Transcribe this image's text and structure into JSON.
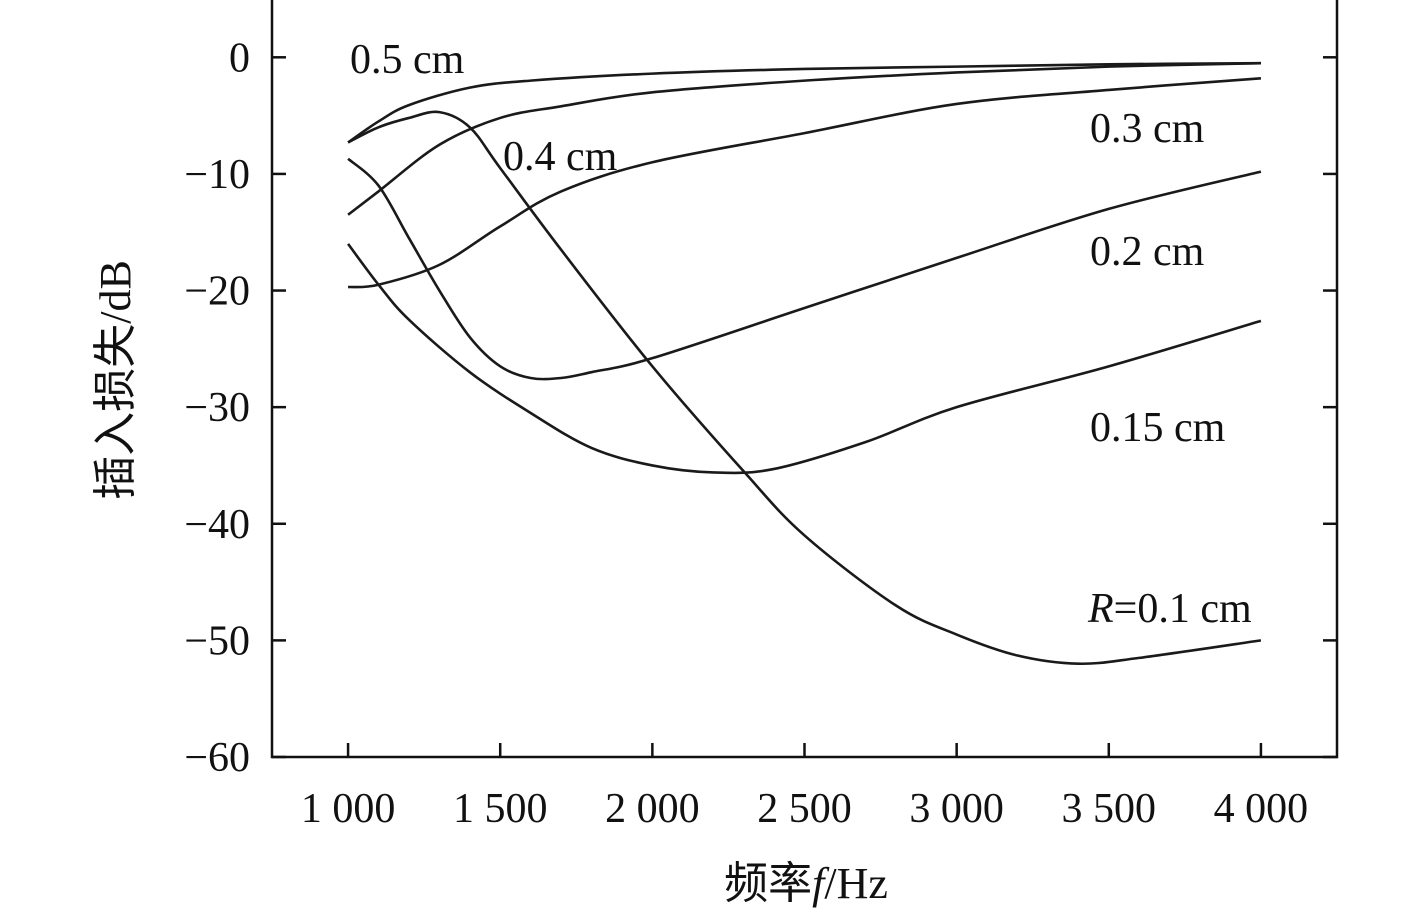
{
  "chart_data": {
    "type": "line",
    "xlabel_parts": [
      "频率",
      "f",
      "/Hz"
    ],
    "ylabel": "插入损失/dB",
    "xlim": [
      750,
      4250
    ],
    "ylim": [
      -60,
      5
    ],
    "xticks": [
      1000,
      1500,
      2000,
      2500,
      3000,
      3500,
      4000
    ],
    "xtick_labels": [
      "1 000",
      "1 500",
      "2 000",
      "2 500",
      "3 000",
      "3 500",
      "4 000"
    ],
    "yticks": [
      0,
      -10,
      -20,
      -30,
      -40,
      -50,
      -60
    ],
    "ytick_labels": [
      "0",
      "−10",
      "−20",
      "−30",
      "−40",
      "−50",
      "−60"
    ],
    "grid": false,
    "line_color": "#1a1a1a",
    "series": [
      {
        "name": "0.5 cm",
        "x": [
          1000,
          1100,
          1200,
          1400,
          1600,
          2000,
          2500,
          3000,
          3500,
          4000
        ],
        "y": [
          -7.3,
          -5.5,
          -4.1,
          -2.6,
          -2.0,
          -1.4,
          -1.0,
          -0.8,
          -0.6,
          -0.5
        ]
      },
      {
        "name": "0.4 cm",
        "x": [
          1000,
          1100,
          1300,
          1500,
          1700,
          2000,
          2500,
          3000,
          3500,
          4000
        ],
        "y": [
          -13.5,
          -11.5,
          -7.5,
          -5.2,
          -4.2,
          -3.0,
          -2.0,
          -1.3,
          -0.8,
          -0.5
        ]
      },
      {
        "name": "0.3 cm",
        "x": [
          1000,
          1100,
          1300,
          1500,
          1700,
          2000,
          2500,
          3000,
          3500,
          4000
        ],
        "y": [
          -19.7,
          -19.5,
          -17.8,
          -14.5,
          -11.5,
          -9.0,
          -6.5,
          -4.0,
          -2.8,
          -1.8
        ]
      },
      {
        "name": "0.2 cm",
        "x": [
          1000,
          1100,
          1200,
          1300,
          1400,
          1500,
          1600,
          1700,
          1800,
          2000,
          2500,
          3000,
          3500,
          4000
        ],
        "y": [
          -8.7,
          -11,
          -15.5,
          -20,
          -24,
          -26.5,
          -27.5,
          -27.5,
          -27,
          -25.8,
          -21.5,
          -17.2,
          -13,
          -9.8
        ]
      },
      {
        "name": "0.15 cm",
        "x": [
          1000,
          1100,
          1200,
          1400,
          1600,
          1800,
          2000,
          2200,
          2400,
          2700,
          3000,
          3500,
          4000
        ],
        "y": [
          -16,
          -19.5,
          -22.5,
          -27,
          -30.5,
          -33.5,
          -35,
          -35.6,
          -35.3,
          -33,
          -30,
          -26.5,
          -22.6
        ]
      },
      {
        "name": "R=0.1 cm",
        "x": [
          1000,
          1100,
          1200,
          1300,
          1400,
          1500,
          1700,
          2000,
          2300,
          2500,
          2800,
          3000,
          3200,
          3400,
          3600,
          4000
        ],
        "y": [
          -7.3,
          -6,
          -5.2,
          -4.7,
          -6,
          -9.5,
          -16.5,
          -26.5,
          -35.5,
          -41,
          -47,
          -49.5,
          -51.3,
          -52,
          -51.5,
          -50
        ]
      }
    ],
    "annotations": [
      {
        "text": "0.5 cm"
      },
      {
        "text": "0.4 cm"
      },
      {
        "text": "0.3 cm"
      },
      {
        "text": "0.2 cm"
      },
      {
        "text": "0.15 cm"
      },
      {
        "prefix": "R",
        "text": "=0.1 cm"
      }
    ]
  }
}
